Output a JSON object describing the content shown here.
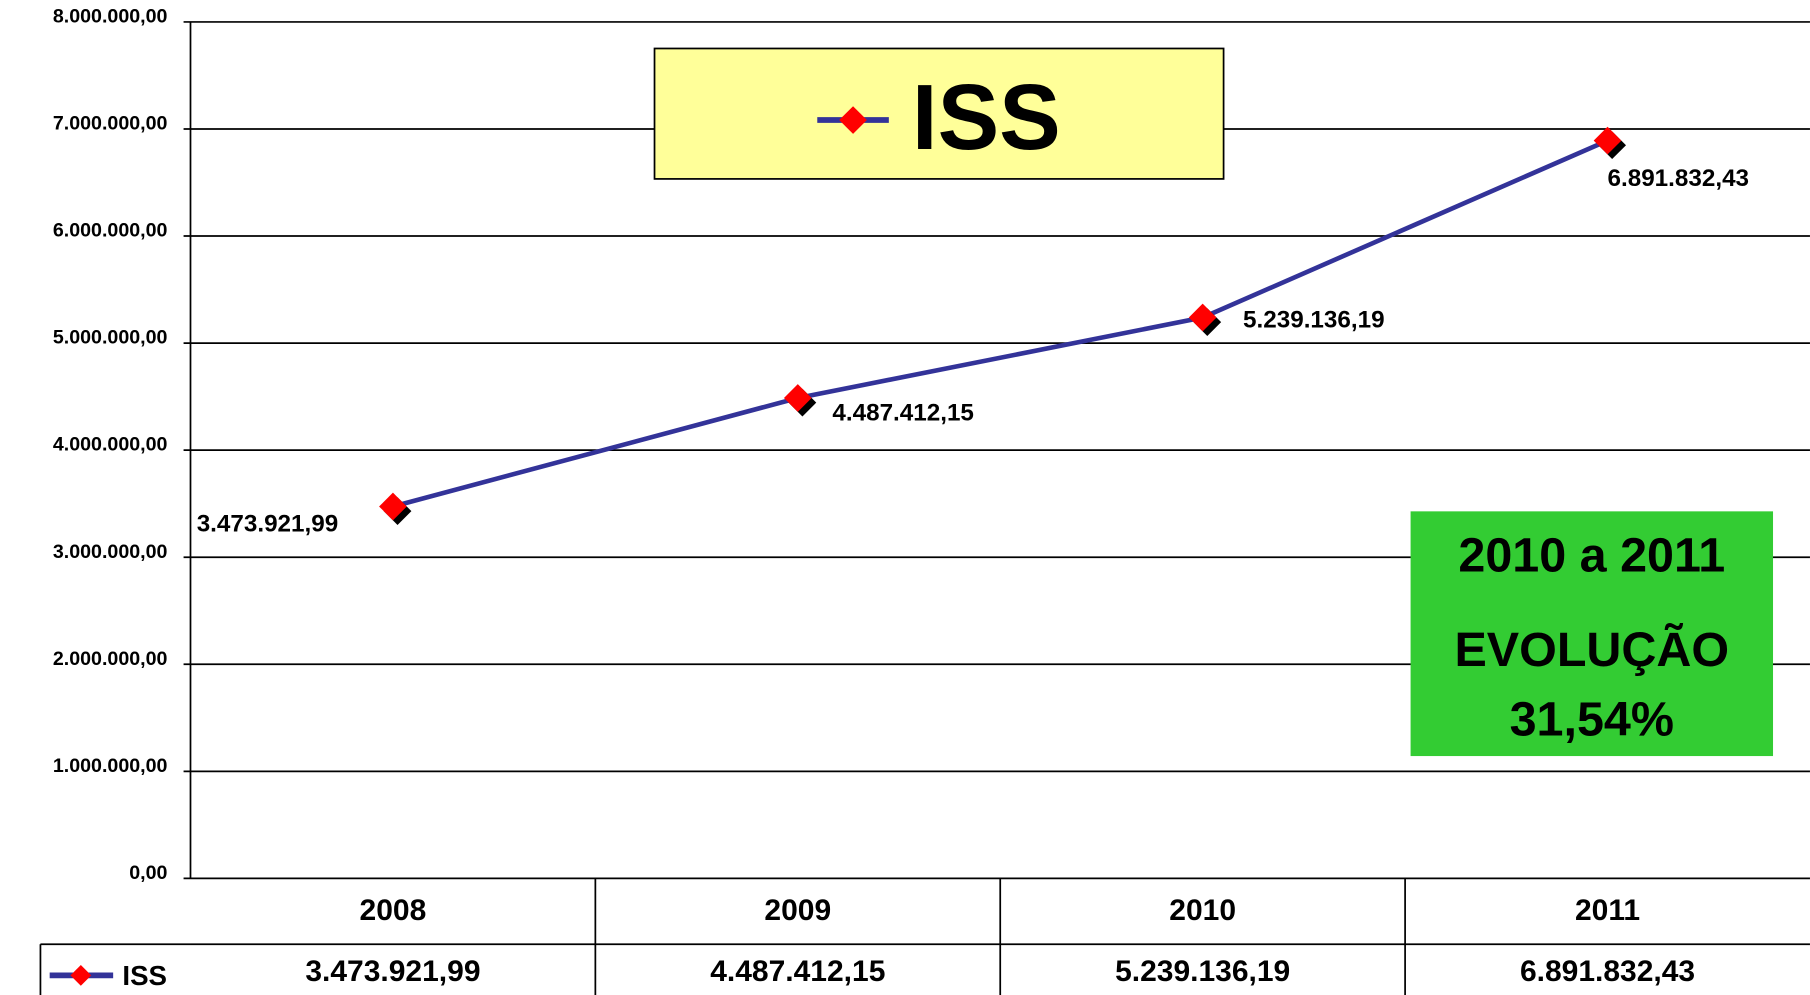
{
  "chart_data": {
    "type": "line",
    "categories": [
      "2008",
      "2009",
      "2010",
      "2011"
    ],
    "series": [
      {
        "name": "ISS",
        "color": "#333399",
        "marker_color": "#ff0000",
        "values": [
          3473921.99,
          4487412.15,
          5239136.19,
          6891832.43
        ],
        "value_labels": [
          "3.473.921,99",
          "4.487.412,15",
          "5.239.136,19",
          "6.891.832,43"
        ]
      }
    ],
    "ylim": [
      0,
      8000000
    ],
    "yticks": [
      {
        "value": 0,
        "label": "0,00"
      },
      {
        "value": 1000000,
        "label": "1.000.000,00"
      },
      {
        "value": 2000000,
        "label": "2.000.000,00"
      },
      {
        "value": 3000000,
        "label": "3.000.000,00"
      },
      {
        "value": 4000000,
        "label": "4.000.000,00"
      },
      {
        "value": 5000000,
        "label": "5.000.000,00"
      },
      {
        "value": 6000000,
        "label": "6.000.000,00"
      },
      {
        "value": 7000000,
        "label": "7.000.000,00"
      },
      {
        "value": 8000000,
        "label": "8.000.000,00"
      }
    ],
    "grid": true,
    "legend": "top",
    "annotation": [
      "2010 a 2011",
      "EVOLUÇÃO",
      "31,54%"
    ],
    "annotation_color": "#33cc33",
    "legend_color": "#ffff99"
  }
}
